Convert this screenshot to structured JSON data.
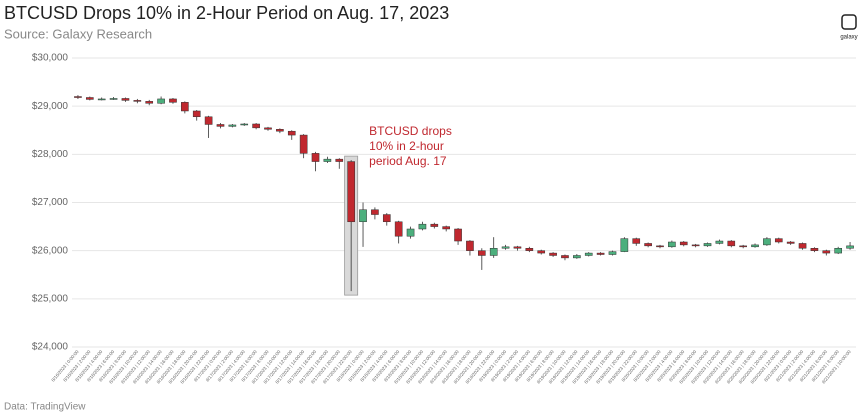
{
  "chart_data": {
    "type": "candlestick",
    "title": "BTCUSD Drops 10% in 2-Hour Period on Aug. 17, 2023",
    "subtitle": "Source: Galaxy Research",
    "footer": "Data: TradingView",
    "logo": "galaxy",
    "annotation": [
      "BTCUSD drops",
      "10% in 2-hour",
      "period Aug. 17"
    ],
    "up_color": "#4caf7d",
    "down_color": "#c0282f",
    "annotation_color": "#c0282f",
    "grid": true,
    "ylim": [
      24000,
      30000
    ],
    "yticks": [
      {
        "value": 24000,
        "label": "$24,000"
      },
      {
        "value": 25000,
        "label": "$25,000"
      },
      {
        "value": 26000,
        "label": "$26,000"
      },
      {
        "value": 27000,
        "label": "$27,000"
      },
      {
        "value": 28000,
        "label": "$28,000"
      },
      {
        "value": 29000,
        "label": "$29,000"
      },
      {
        "value": 30000,
        "label": "$30,000"
      }
    ],
    "categories": [
      "8/16/2023 | 0:00:00",
      "8/16/2023 | 2:00:00",
      "8/16/2023 | 4:00:00",
      "8/16/2023 | 6:00:00",
      "8/16/2023 | 8:00:00",
      "8/16/2023 | 10:00:00",
      "8/16/2023 | 12:00:00",
      "8/16/2023 | 14:00:00",
      "8/16/2023 | 16:00:00",
      "8/16/2023 | 18:00:00",
      "8/16/2023 | 20:00:00",
      "8/16/2023 | 22:00:00",
      "8/17/2023 | 0:00:00",
      "8/17/2023 | 2:00:00",
      "8/17/2023 | 4:00:00",
      "8/17/2023 | 6:00:00",
      "8/17/2023 | 8:00:00",
      "8/17/2023 | 10:00:00",
      "8/17/2023 | 12:00:00",
      "8/17/2023 | 14:00:00",
      "8/17/2023 | 16:00:00",
      "8/17/2023 | 18:00:00",
      "8/17/2023 | 20:00:00",
      "8/17/2023 | 22:00:00",
      "8/18/2023 | 0:00:00",
      "8/18/2023 | 2:00:00",
      "8/18/2023 | 4:00:00",
      "8/18/2023 | 6:00:00",
      "8/18/2023 | 8:00:00",
      "8/18/2023 | 10:00:00",
      "8/18/2023 | 12:00:00",
      "8/18/2023 | 14:00:00",
      "8/18/2023 | 16:00:00",
      "8/18/2023 | 18:00:00",
      "8/18/2023 | 20:00:00",
      "8/18/2023 | 22:00:00",
      "8/19/2023 | 0:00:00",
      "8/19/2023 | 2:00:00",
      "8/19/2023 | 4:00:00",
      "8/19/2023 | 6:00:00",
      "8/19/2023 | 8:00:00",
      "8/19/2023 | 10:00:00",
      "8/19/2023 | 12:00:00",
      "8/19/2023 | 14:00:00",
      "8/19/2023 | 16:00:00",
      "8/19/2023 | 18:00:00",
      "8/19/2023 | 20:00:00",
      "8/19/2023 | 22:00:00",
      "8/20/2023 | 0:00:00",
      "8/20/2023 | 2:00:00",
      "8/20/2023 | 4:00:00",
      "8/20/2023 | 6:00:00",
      "8/20/2023 | 8:00:00",
      "8/20/2023 | 10:00:00",
      "8/20/2023 | 12:00:00",
      "8/20/2023 | 14:00:00",
      "8/20/2023 | 16:00:00",
      "8/20/2023 | 18:00:00",
      "8/20/2023 | 20:00:00",
      "8/20/2023 | 22:00:00",
      "8/21/2023 | 0:00:00",
      "8/21/2023 | 2:00:00",
      "8/21/2023 | 4:00:00",
      "8/21/2023 | 6:00:00",
      "8/21/2023 | 8:00:00",
      "8/21/2023 | 10:00:00"
    ],
    "open": [
      29200,
      29180,
      29140,
      29150,
      29160,
      29120,
      29100,
      29060,
      29150,
      29080,
      28900,
      28780,
      28620,
      28580,
      28610,
      28630,
      28550,
      28520,
      28480,
      28400,
      28020,
      27850,
      27900,
      27850,
      26600,
      26850,
      26750,
      26600,
      26300,
      26450,
      26550,
      26500,
      26450,
      26200,
      26000,
      25900,
      26050,
      26080,
      26050,
      26000,
      25950,
      25900,
      25850,
      25900,
      25950,
      25920,
      25980,
      26250,
      26150,
      26100,
      26080,
      26180,
      26120,
      26100,
      26150,
      26200,
      26100,
      26080,
      26120,
      26250,
      26180,
      26150,
      26050,
      26000,
      25950,
      26050
    ],
    "high": [
      29230,
      29200,
      29180,
      29190,
      29180,
      29150,
      29130,
      29200,
      29170,
      29100,
      28920,
      28800,
      28650,
      28630,
      28650,
      28650,
      28570,
      28540,
      28500,
      28420,
      28050,
      27950,
      27920,
      27880,
      27000,
      26900,
      26780,
      26620,
      26500,
      26600,
      26580,
      26520,
      26470,
      26220,
      26050,
      26280,
      26120,
      26100,
      26080,
      26020,
      25970,
      25920,
      25930,
      25970,
      25970,
      26000,
      26280,
      26270,
      26170,
      26120,
      26210,
      26200,
      26140,
      26170,
      26230,
      26220,
      26120,
      26150,
      26280,
      26270,
      26200,
      26170,
      26070,
      26020,
      26080,
      26180
    ],
    "low": [
      29150,
      29120,
      29120,
      29130,
      29090,
      29060,
      29020,
      29040,
      29050,
      28850,
      28700,
      28340,
      28540,
      28560,
      28590,
      28520,
      28490,
      28440,
      28300,
      27920,
      27650,
      27820,
      27700,
      25160,
      26080,
      26650,
      26520,
      26150,
      26250,
      26420,
      26460,
      26400,
      26120,
      25900,
      25600,
      25850,
      26020,
      26000,
      25970,
      25920,
      25870,
      25800,
      25830,
      25880,
      25900,
      25900,
      25970,
      26100,
      26070,
      26050,
      26060,
      26090,
      26070,
      26080,
      26130,
      26070,
      26050,
      26060,
      26100,
      26150,
      26120,
      26020,
      25970,
      25900,
      25930,
      26020
    ],
    "close": [
      29180,
      29140,
      29150,
      29160,
      29120,
      29100,
      29060,
      29150,
      29080,
      28900,
      28780,
      28620,
      28580,
      28610,
      28630,
      28550,
      28520,
      28480,
      28400,
      28020,
      27850,
      27900,
      27850,
      26600,
      26850,
      26750,
      26600,
      26300,
      26450,
      26550,
      26500,
      26450,
      26200,
      26000,
      25900,
      26050,
      26080,
      26050,
      26000,
      25950,
      25900,
      25850,
      25900,
      25950,
      25920,
      25980,
      26250,
      26150,
      26100,
      26080,
      26180,
      26120,
      26100,
      26150,
      26200,
      26100,
      26080,
      26120,
      26250,
      26180,
      26150,
      26050,
      26000,
      25950,
      26050,
      26100
    ]
  }
}
